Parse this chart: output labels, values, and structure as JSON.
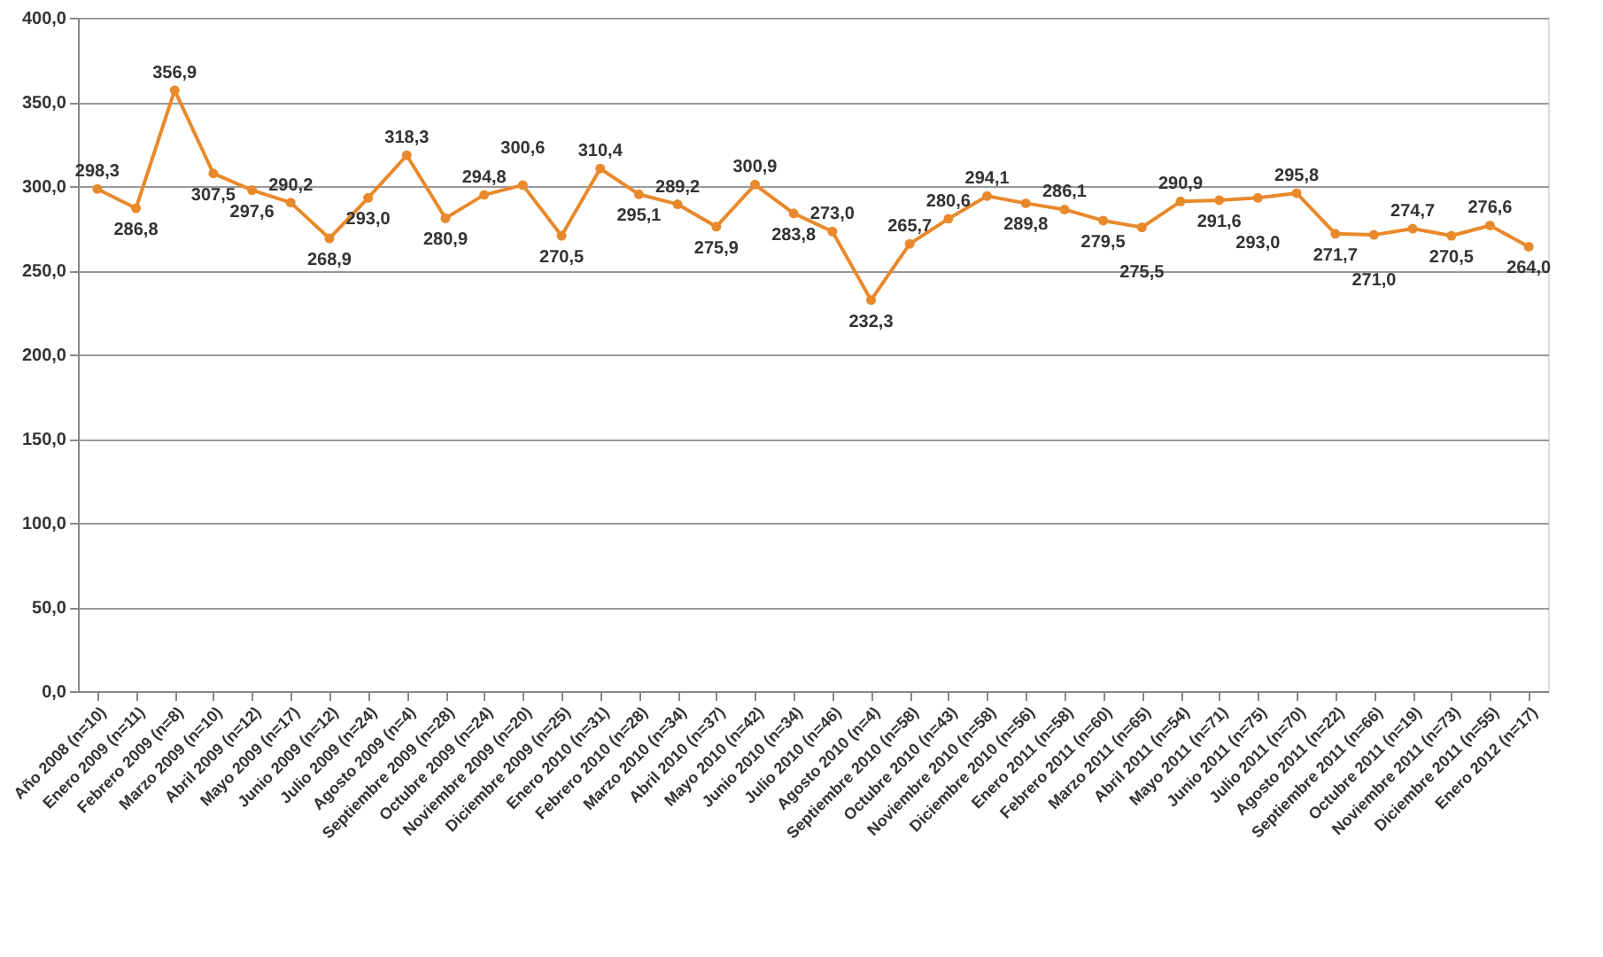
{
  "chart_data": {
    "type": "line",
    "categories": [
      "Año 2008 (n=10)",
      "Enero 2009 (n=11)",
      "Febrero 2009 (n=8)",
      "Marzo 2009 (n=10)",
      "Abril 2009 (n=12)",
      "Mayo 2009 (n=17)",
      "Junio 2009 (n=12)",
      "Julio 2009 (n=24)",
      "Agosto 2009 (n=4)",
      "Septiembre 2009 (n=28)",
      "Octubre 2009 (n=24)",
      "Noviembre 2009 (n=20)",
      "Diciembre 2009 (n=25)",
      "Enero 2010 (n=31)",
      "Febrero 2010 (n=28)",
      "Marzo 2010 (n=34)",
      "Abril 2010 (n=37)",
      "Mayo 2010 (n=42)",
      "Junio 2010 (n=34)",
      "Julio 2010 (n=46)",
      "Agosto 2010 (n=4)",
      "Septiembre 2010 (n=58)",
      "Octubre 2010 (n=43)",
      "Noviembre 2010 (n=58)",
      "Diciembre 2010 (n=56)",
      "Enero 2011 (n=58)",
      "Febrero 2011 (n=60)",
      "Marzo 2011 (n=65)",
      "Abril 2011 (n=54)",
      "Mayo 2011 (n=71)",
      "Junio 2011 (n=75)",
      "Julio 2011 (n=70)",
      "Agosto 2011 (n=22)",
      "Septiembre 2011 (n=66)",
      "Octubre 2011 (n=19)",
      "Noviembre 2011 (n=73)",
      "Diciembre 2011 (n=55)",
      "Enero 2012 (n=17)"
    ],
    "series": [
      {
        "color": "#e8892b",
        "values": [
          298.3,
          286.8,
          356.9,
          307.5,
          297.6,
          290.2,
          268.9,
          293.0,
          318.3,
          280.9,
          294.8,
          300.6,
          270.5,
          310.4,
          295.1,
          289.2,
          275.9,
          300.9,
          283.8,
          273.0,
          232.3,
          265.7,
          280.6,
          294.1,
          289.8,
          286.1,
          279.5,
          275.5,
          290.9,
          291.6,
          293.0,
          295.8,
          271.7,
          271.0,
          274.7,
          270.5,
          276.6,
          264.0
        ],
        "value_labels": [
          "298,3",
          "286,8",
          "356,9",
          "307,5",
          "297,6",
          "290,2",
          "268,9",
          "293,0",
          "318,3",
          "280,9",
          "294,8",
          "300,6",
          "270,5",
          "310,4",
          "295,1",
          "289,2",
          "275,9",
          "300,9",
          "283,8",
          "273,0",
          "232,3",
          "265,7",
          "280,6",
          "294,1",
          "289,8",
          "286,1",
          "279,5",
          "275,5",
          "290,9",
          "291,6",
          "293,0",
          "295,8",
          "271,7",
          "271,0",
          "274,7",
          "270,5",
          "276,6",
          "264,0"
        ]
      }
    ],
    "ylim": [
      0,
      400
    ],
    "yticks": [
      {
        "value": 0,
        "label": "0,0"
      },
      {
        "value": 50,
        "label": "50,0"
      },
      {
        "value": 100,
        "label": "100,0"
      },
      {
        "value": 150,
        "label": "150,0"
      },
      {
        "value": 200,
        "label": "200,0"
      },
      {
        "value": 250,
        "label": "250,0"
      },
      {
        "value": 300,
        "label": "300,0"
      },
      {
        "value": 350,
        "label": "350,0"
      },
      {
        "value": 400,
        "label": "400,0"
      }
    ],
    "grid": "y",
    "marker": "circle",
    "line_style": "solid"
  }
}
